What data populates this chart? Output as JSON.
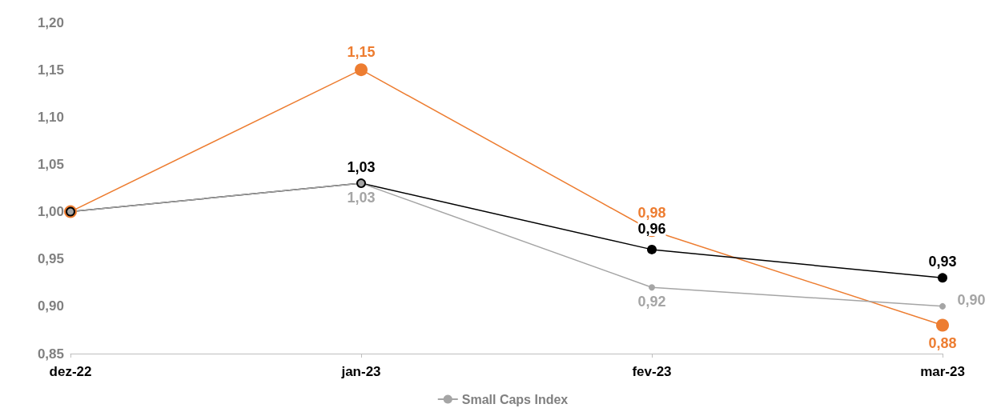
{
  "chart_data": {
    "type": "line",
    "categories": [
      "dez-22",
      "jan-23",
      "fev-23",
      "mar-23"
    ],
    "series": [
      {
        "color": "#ed7d31",
        "values": [
          1.0,
          1.15,
          0.98,
          0.88
        ],
        "value_labels": [
          null,
          "1,15",
          "0,98",
          "0,88"
        ]
      },
      {
        "color": "#000000",
        "values": [
          1.0,
          1.03,
          0.96,
          0.93
        ],
        "value_labels": [
          null,
          "1,03",
          "0,96",
          "0,93"
        ]
      },
      {
        "name": "Small Caps Index",
        "color": "#a5a5a5",
        "values": [
          1.0,
          1.03,
          0.92,
          0.9
        ],
        "value_labels": [
          null,
          "1,03",
          "0,92",
          "0,90"
        ]
      }
    ],
    "ylim": [
      0.85,
      1.2
    ],
    "yticks": [
      {
        "value": 0.85,
        "label": "0,85"
      },
      {
        "value": 0.9,
        "label": "0,90"
      },
      {
        "value": 0.95,
        "label": "0,95"
      },
      {
        "value": 1.0,
        "label": "1,00"
      },
      {
        "value": 1.05,
        "label": "1,05"
      },
      {
        "value": 1.1,
        "label": "1,10"
      },
      {
        "value": 1.15,
        "label": "1,15"
      },
      {
        "value": 1.2,
        "label": "1,20"
      }
    ],
    "grid": false,
    "legend": "bottom",
    "marker": "circle",
    "line_style": "solid"
  }
}
